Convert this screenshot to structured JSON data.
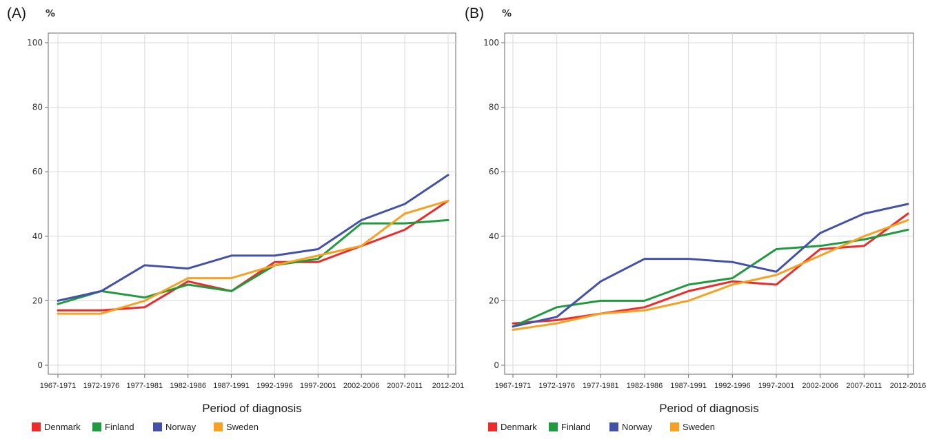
{
  "chart_data": [
    {
      "panel_label": "(A)",
      "type": "line",
      "ylabel": "%",
      "xlabel": "Period of diagnosis",
      "ylim": [
        0,
        100
      ],
      "yticks": [
        0,
        20,
        40,
        60,
        80,
        100
      ],
      "grid": true,
      "legend_position": "bottom-left",
      "categories": [
        "1967-1971",
        "1972-1976",
        "1977-1981",
        "1982-1986",
        "1987-1991",
        "1992-1996",
        "1997-2001",
        "2002-2006",
        "2007-2011",
        "2012-201"
      ],
      "series": [
        {
          "name": "Denmark",
          "color": "#ee2b2b",
          "values": [
            17,
            17,
            18,
            26,
            23,
            32,
            32,
            37,
            42,
            51
          ]
        },
        {
          "name": "Finland",
          "color": "#1f9a3f",
          "values": [
            19,
            23,
            21,
            25,
            23,
            31,
            33,
            44,
            44,
            45
          ]
        },
        {
          "name": "Norway",
          "color": "#4352a8",
          "values": [
            20,
            23,
            31,
            30,
            34,
            34,
            36,
            45,
            50,
            59
          ]
        },
        {
          "name": "Sweden",
          "color": "#f6a121",
          "values": [
            16,
            16,
            20,
            27,
            27,
            31,
            34,
            37,
            47,
            51
          ]
        }
      ]
    },
    {
      "panel_label": "(B)",
      "type": "line",
      "ylabel": "%",
      "xlabel": "Period of diagnosis",
      "ylim": [
        0,
        100
      ],
      "yticks": [
        0,
        20,
        40,
        60,
        80,
        100
      ],
      "grid": true,
      "legend_position": "bottom-left",
      "categories": [
        "1967-1971",
        "1972-1976",
        "1977-1981",
        "1982-1986",
        "1987-1991",
        "1992-1996",
        "1997-2001",
        "2002-2006",
        "2007-2011",
        "2012-2016"
      ],
      "series": [
        {
          "name": "Denmark",
          "color": "#ee2b2b",
          "values": [
            13,
            14,
            16,
            18,
            23,
            26,
            25,
            36,
            37,
            47
          ]
        },
        {
          "name": "Finland",
          "color": "#1f9a3f",
          "values": [
            12,
            18,
            20,
            20,
            25,
            27,
            36,
            37,
            39,
            42
          ]
        },
        {
          "name": "Norway",
          "color": "#4352a8",
          "values": [
            12,
            15,
            26,
            33,
            33,
            32,
            29,
            41,
            47,
            50
          ]
        },
        {
          "name": "Sweden",
          "color": "#f6a121",
          "values": [
            11,
            13,
            16,
            17,
            20,
            25,
            28,
            34,
            40,
            45
          ]
        }
      ]
    }
  ]
}
